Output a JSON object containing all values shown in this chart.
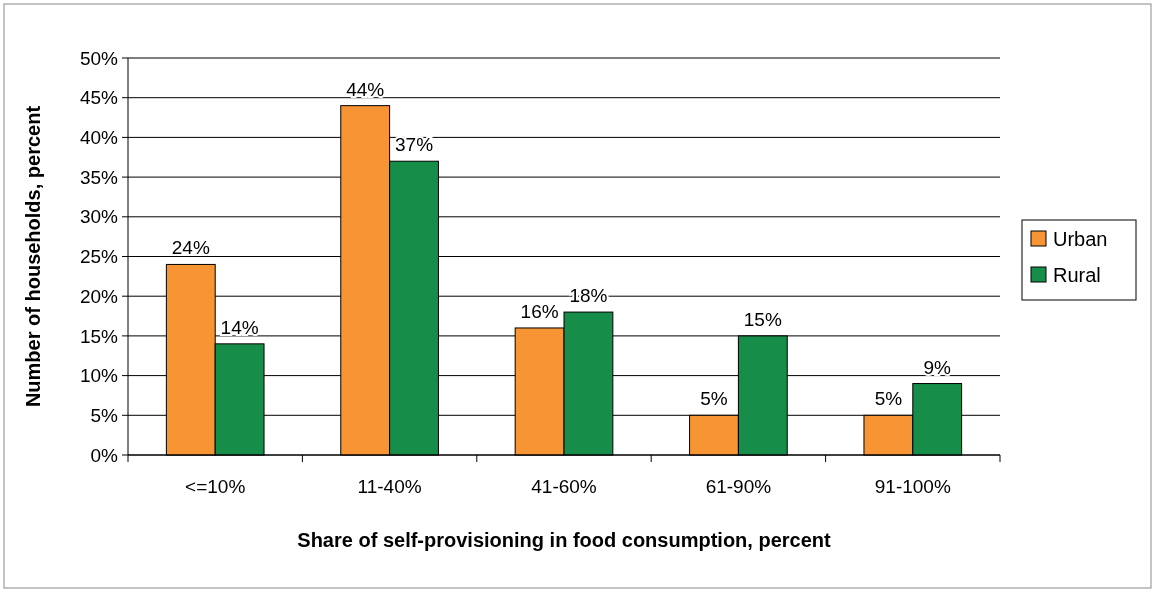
{
  "chart_data": {
    "type": "bar",
    "xlabel": "Share of self-provisioning in food consumption, percent",
    "ylabel": "Number of households, percent",
    "categories": [
      "<=10%",
      "11-40%",
      "41-60%",
      "61-90%",
      "91-100%"
    ],
    "series": [
      {
        "name": "Urban",
        "color": "#f79433",
        "values": [
          24,
          44,
          16,
          5,
          5
        ],
        "value_labels": [
          "24%",
          "44%",
          "16%",
          "5%",
          "5%"
        ]
      },
      {
        "name": "Rural",
        "color": "#168d48",
        "values": [
          14,
          37,
          18,
          15,
          9
        ],
        "value_labels": [
          "14%",
          "37%",
          "18%",
          "15%",
          "9%"
        ]
      }
    ],
    "ylim": [
      0,
      50
    ],
    "yticks": [
      {
        "value": 0,
        "label": "0%"
      },
      {
        "value": 5,
        "label": "5%"
      },
      {
        "value": 10,
        "label": "10%"
      },
      {
        "value": 15,
        "label": "15%"
      },
      {
        "value": 20,
        "label": "20%"
      },
      {
        "value": 25,
        "label": "25%"
      },
      {
        "value": 30,
        "label": "30%"
      },
      {
        "value": 35,
        "label": "35%"
      },
      {
        "value": 40,
        "label": "40%"
      },
      {
        "value": 45,
        "label": "45%"
      },
      {
        "value": 50,
        "label": "50%"
      }
    ],
    "grid": "y",
    "legend": "right"
  }
}
